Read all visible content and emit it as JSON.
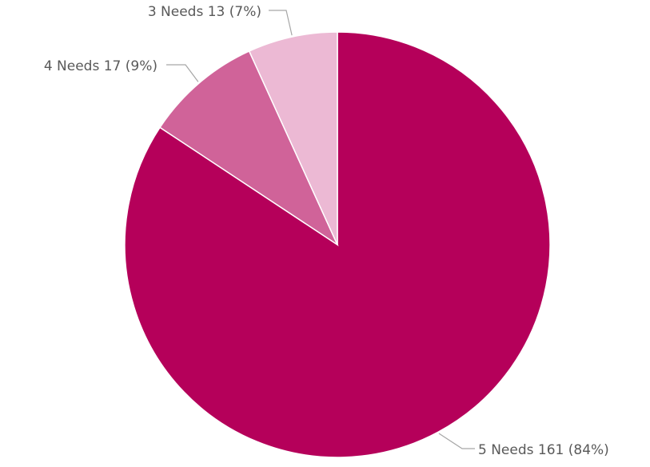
{
  "chart_data": {
    "type": "pie",
    "title": "",
    "start": "top",
    "direction": "clockwise",
    "legend": "none",
    "slices": [
      {
        "label": "5 Needs",
        "value": 161,
        "percent": "84%",
        "display": "5 Needs 161 (84%)",
        "color": "#b5005a"
      },
      {
        "label": "4 Needs",
        "value": 17,
        "percent": "9%",
        "display": "4 Needs 17 (9%)",
        "color": "#d06399"
      },
      {
        "label": "3 Needs",
        "value": 13,
        "percent": "7%",
        "display": "3 Needs 13 (7%)",
        "color": "#ecb9d4"
      }
    ]
  }
}
